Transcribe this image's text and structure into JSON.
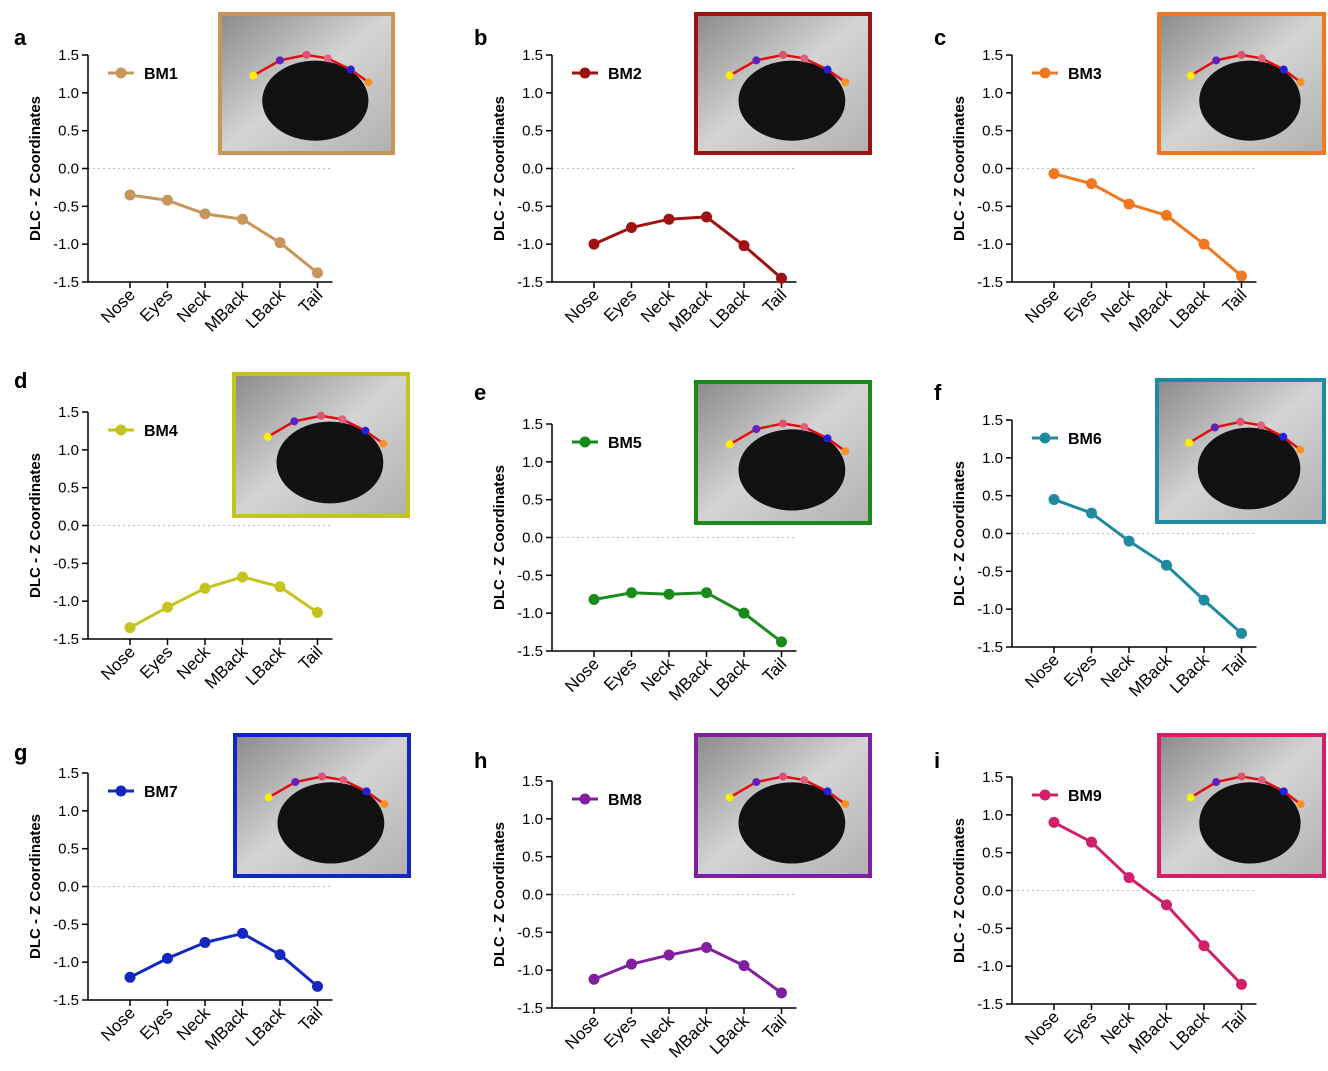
{
  "chart_data": [
    {
      "type": "line",
      "panel_label": "a",
      "y_label": "DLC - Z Coordinates",
      "categories": [
        "Nose",
        "Eyes",
        "Neck",
        "MBack",
        "LBack",
        "Tail"
      ],
      "series": [
        {
          "name": "BM1",
          "color": "#c8965a",
          "values": [
            -0.35,
            -0.42,
            -0.6,
            -0.67,
            -0.98,
            -1.38
          ]
        }
      ],
      "ylim": [
        -1.5,
        1.5
      ],
      "yticks": [
        -1.5,
        {
          "value": -1,
          "label": "-1.0"
        },
        -0.5,
        {
          "value": 0,
          "label": "0.0"
        },
        0.5,
        {
          "value": 1,
          "label": "1.0"
        },
        1.5
      ],
      "zero_line": true
    },
    {
      "type": "line",
      "panel_label": "b",
      "y_label": "DLC - Z Coordinates",
      "categories": [
        "Nose",
        "Eyes",
        "Neck",
        "MBack",
        "LBack",
        "Tail"
      ],
      "series": [
        {
          "name": "BM2",
          "color": "#a01212",
          "values": [
            -1.0,
            -0.78,
            -0.67,
            -0.64,
            -1.02,
            -1.45
          ]
        }
      ],
      "ylim": [
        -1.5,
        1.5
      ],
      "yticks": [
        -1.5,
        {
          "value": -1,
          "label": "-1.0"
        },
        -0.5,
        {
          "value": 0,
          "label": "0.0"
        },
        0.5,
        {
          "value": 1,
          "label": "1.0"
        },
        1.5
      ],
      "zero_line": true
    },
    {
      "type": "line",
      "panel_label": "c",
      "y_label": "DLC - Z Coordinates",
      "categories": [
        "Nose",
        "Eyes",
        "Neck",
        "MBack",
        "LBack",
        "Tail"
      ],
      "series": [
        {
          "name": "BM3",
          "color": "#f07820",
          "values": [
            -0.07,
            -0.2,
            -0.47,
            -0.62,
            -1.0,
            -1.42
          ]
        }
      ],
      "ylim": [
        -1.5,
        1.5
      ],
      "yticks": [
        -1.5,
        {
          "value": -1,
          "label": "-1.0"
        },
        -0.5,
        {
          "value": 0,
          "label": "0.0"
        },
        0.5,
        {
          "value": 1,
          "label": "1.0"
        },
        1.5
      ],
      "zero_line": true
    },
    {
      "type": "line",
      "panel_label": "d",
      "y_label": "DLC - Z Coordinates",
      "categories": [
        "Nose",
        "Eyes",
        "Neck",
        "MBack",
        "LBack",
        "Tail"
      ],
      "series": [
        {
          "name": "BM4",
          "color": "#c4c41e",
          "values": [
            -1.35,
            -1.08,
            -0.83,
            -0.68,
            -0.81,
            -1.15
          ]
        }
      ],
      "ylim": [
        -1.5,
        1.5
      ],
      "yticks": [
        -1.5,
        {
          "value": -1,
          "label": "-1.0"
        },
        -0.5,
        {
          "value": 0,
          "label": "0.0"
        },
        0.5,
        {
          "value": 1,
          "label": "1.0"
        },
        1.5
      ],
      "zero_line": true
    },
    {
      "type": "line",
      "panel_label": "e",
      "y_label": "DLC - Z Coordinates",
      "categories": [
        "Nose",
        "Eyes",
        "Neck",
        "MBack",
        "LBack",
        "Tail"
      ],
      "series": [
        {
          "name": "BM5",
          "color": "#1a8a1a",
          "values": [
            -0.82,
            -0.73,
            -0.75,
            -0.73,
            -1.0,
            -1.38
          ]
        }
      ],
      "ylim": [
        -1.5,
        1.5
      ],
      "yticks": [
        -1.5,
        {
          "value": -1,
          "label": "-1.0"
        },
        -0.5,
        {
          "value": 0,
          "label": "0.0"
        },
        0.5,
        {
          "value": 1,
          "label": "1.0"
        },
        1.5
      ],
      "zero_line": true
    },
    {
      "type": "line",
      "panel_label": "f",
      "y_label": "DLC - Z Coordinates",
      "categories": [
        "Nose",
        "Eyes",
        "Neck",
        "MBack",
        "LBack",
        "Tail"
      ],
      "series": [
        {
          "name": "BM6",
          "color": "#1f8aa0",
          "values": [
            0.45,
            0.27,
            -0.1,
            -0.42,
            -0.88,
            -1.32
          ]
        }
      ],
      "ylim": [
        -1.5,
        1.5
      ],
      "yticks": [
        -1.5,
        {
          "value": -1,
          "label": "-1.0"
        },
        -0.5,
        {
          "value": 0,
          "label": "0.0"
        },
        0.5,
        {
          "value": 1,
          "label": "1.0"
        },
        1.5
      ],
      "zero_line": true
    },
    {
      "type": "line",
      "panel_label": "g",
      "y_label": "DLC - Z Coordinates",
      "categories": [
        "Nose",
        "Eyes",
        "Neck",
        "MBack",
        "LBack",
        "Tail"
      ],
      "series": [
        {
          "name": "BM7",
          "color": "#1428c0",
          "values": [
            -1.2,
            -0.95,
            -0.74,
            -0.62,
            -0.9,
            -1.32
          ]
        }
      ],
      "ylim": [
        -1.5,
        1.5
      ],
      "yticks": [
        -1.5,
        {
          "value": -1,
          "label": "-1.0"
        },
        -0.5,
        {
          "value": 0,
          "label": "0.0"
        },
        0.5,
        {
          "value": 1,
          "label": "1.0"
        },
        1.5
      ],
      "zero_line": true
    },
    {
      "type": "line",
      "panel_label": "h",
      "y_label": "DLC - Z Coordinates",
      "categories": [
        "Nose",
        "Eyes",
        "Neck",
        "MBack",
        "LBack",
        "Tail"
      ],
      "series": [
        {
          "name": "BM8",
          "color": "#8020a0",
          "values": [
            -1.12,
            -0.92,
            -0.8,
            -0.7,
            -0.94,
            -1.3
          ]
        }
      ],
      "ylim": [
        -1.5,
        1.5
      ],
      "yticks": [
        -1.5,
        {
          "value": -1,
          "label": "-1.0"
        },
        -0.5,
        {
          "value": 0,
          "label": "0.0"
        },
        0.5,
        {
          "value": 1,
          "label": "1.0"
        },
        1.5
      ],
      "zero_line": true
    },
    {
      "type": "line",
      "panel_label": "i",
      "y_label": "DLC - Z Coordinates",
      "categories": [
        "Nose",
        "Eyes",
        "Neck",
        "MBack",
        "LBack",
        "Tail"
      ],
      "series": [
        {
          "name": "BM9",
          "color": "#d0206a",
          "values": [
            0.9,
            0.64,
            0.17,
            -0.19,
            -0.73,
            -1.24
          ]
        }
      ],
      "ylim": [
        -1.5,
        1.5
      ],
      "yticks": [
        -1.5,
        {
          "value": -1,
          "label": "-1.0"
        },
        -0.5,
        {
          "value": 0,
          "label": "0.0"
        },
        0.5,
        {
          "value": 1,
          "label": "1.0"
        },
        1.5
      ],
      "zero_line": true
    }
  ]
}
